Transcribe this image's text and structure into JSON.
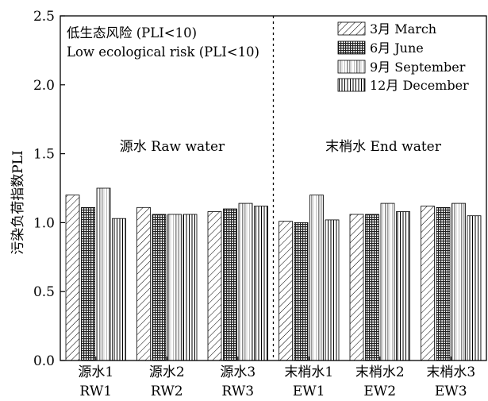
{
  "chart_data": {
    "type": "bar",
    "categories": [
      {
        "line1": "源水1",
        "line2": "RW1"
      },
      {
        "line1": "源水2",
        "line2": "RW2"
      },
      {
        "line1": "源水3",
        "line2": "RW3"
      },
      {
        "line1": "末梢水1",
        "line2": "EW1"
      },
      {
        "line1": "末梢水2",
        "line2": "EW2"
      },
      {
        "line1": "末梢水3",
        "line2": "EW3"
      }
    ],
    "series": [
      {
        "name": "3月 March",
        "pattern": "diag",
        "values": [
          1.2,
          1.11,
          1.08,
          1.01,
          1.06,
          1.12
        ]
      },
      {
        "name": "6月 June",
        "pattern": "grid",
        "values": [
          1.11,
          1.06,
          1.1,
          1.0,
          1.06,
          1.11
        ]
      },
      {
        "name": "9月 September",
        "pattern": "gradient",
        "values": [
          1.25,
          1.06,
          1.14,
          1.2,
          1.14,
          1.14
        ]
      },
      {
        "name": "12月 December",
        "pattern": "vlines",
        "values": [
          1.03,
          1.06,
          1.12,
          1.02,
          1.08,
          1.05
        ]
      }
    ],
    "ylabel": "污染负荷指数PLI",
    "xlabel": "",
    "ylim": [
      0,
      2.5
    ],
    "yticks": [
      "0.0",
      "0.5",
      "1.0",
      "1.5",
      "2.0",
      "2.5"
    ],
    "annotation_lines": [
      "低生态风险 (PLI<10)",
      "Low ecological risk (PLI<10)"
    ],
    "region_labels": [
      "源水 Raw water",
      "末梢水 End water"
    ],
    "divider_after_category": 3,
    "legend_position": "top-right",
    "grid": false,
    "colors": {
      "axis": "#000000",
      "bar_edge": "#000000",
      "fill": "#ffffff"
    }
  }
}
